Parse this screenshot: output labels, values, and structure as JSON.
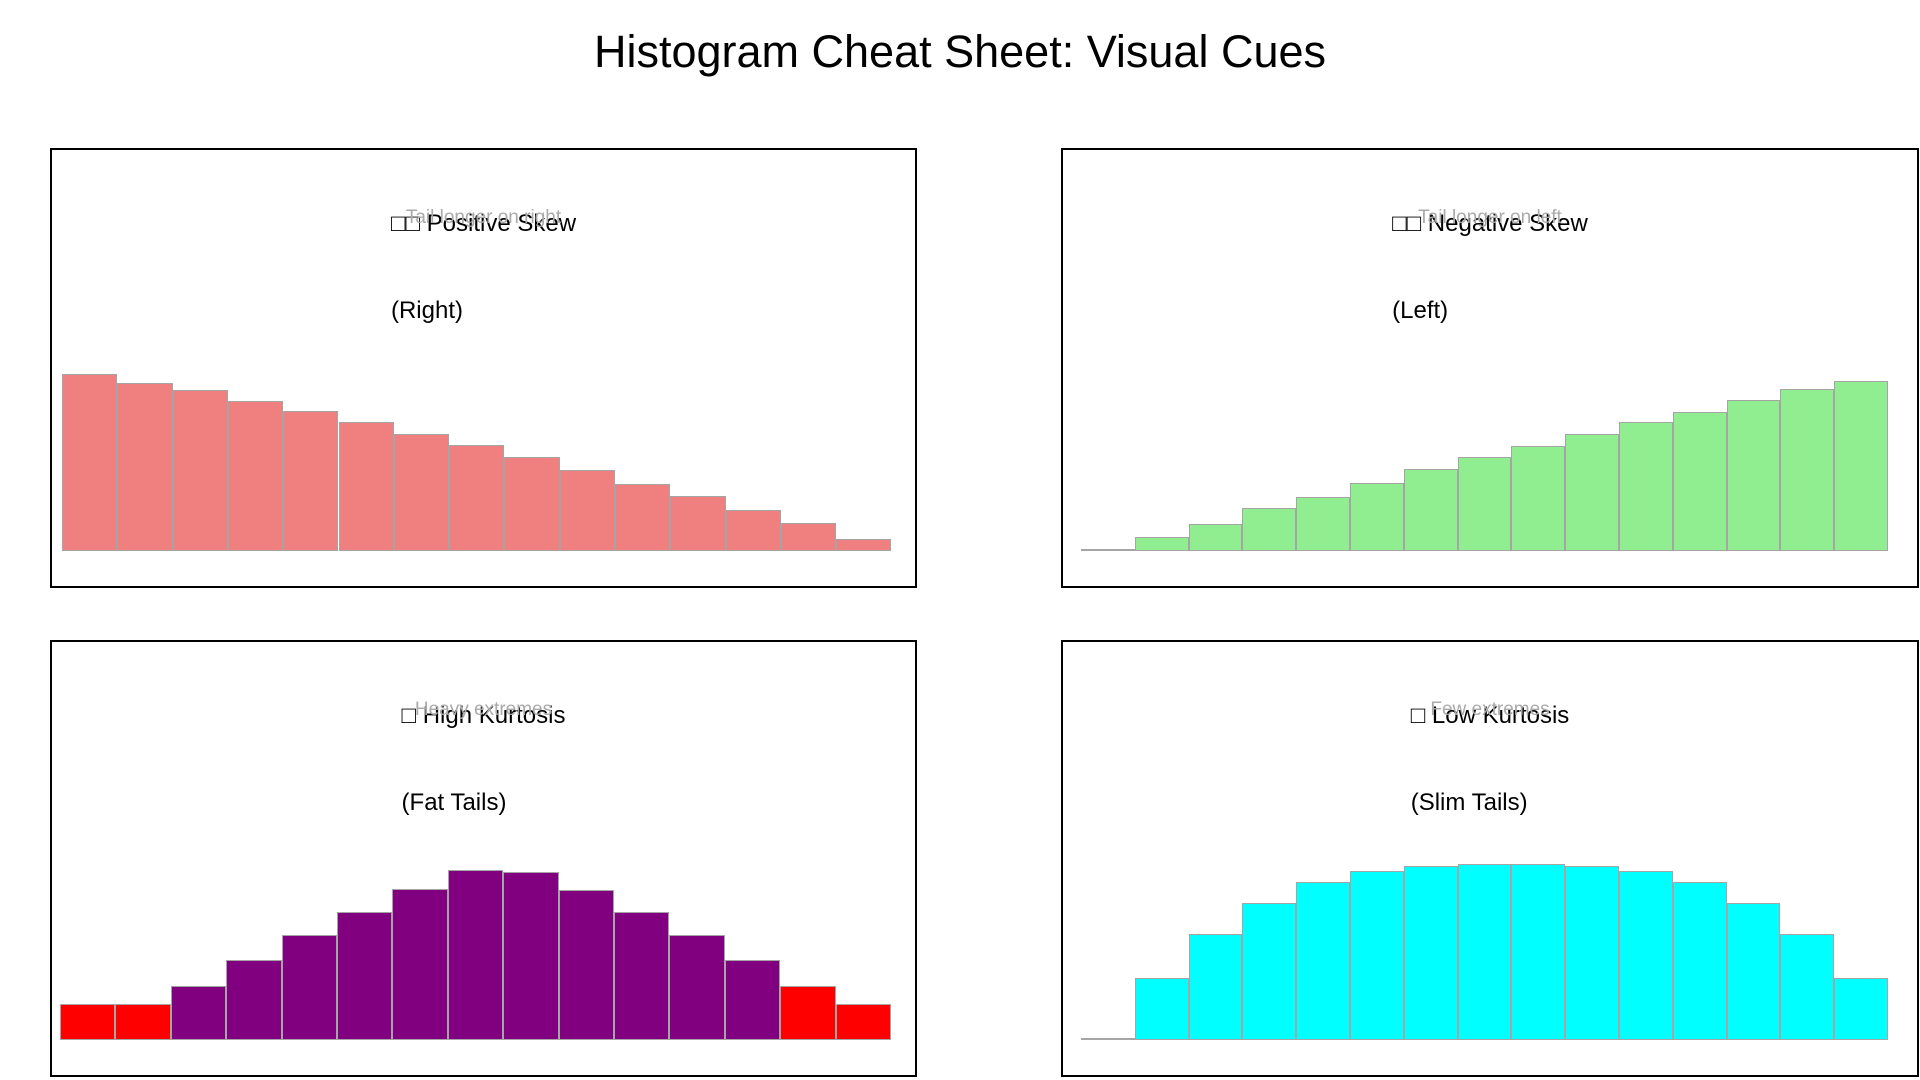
{
  "main_title": "Histogram Cheat Sheet: Visual Cues",
  "panels": [
    {
      "id": "positive-skew",
      "title_line1": "□□ Positive Skew",
      "title_line2": "(Right)",
      "subtitle": "Tail longer on right",
      "missing_glyph_count": 2
    },
    {
      "id": "negative-skew",
      "title_line1": "□□ Negative Skew",
      "title_line2": "(Left)",
      "subtitle": "Tail longer on left",
      "missing_glyph_count": 2
    },
    {
      "id": "high-kurtosis",
      "title_line1": "□ High Kurtosis",
      "title_line2": "(Fat Tails)",
      "subtitle": "Heavy extremes",
      "missing_glyph_count": 1
    },
    {
      "id": "low-kurtosis",
      "title_line1": "□ Low Kurtosis",
      "title_line2": "(Slim Tails)",
      "subtitle": "Few extremes",
      "missing_glyph_count": 1
    }
  ],
  "chart_data": [
    {
      "type": "bar",
      "subtype": "histogram",
      "title": "□□ Positive Skew (Right)",
      "annotation": "Tail longer on right",
      "bin_count": 15,
      "values": [
        1.0,
        0.95,
        0.91,
        0.85,
        0.79,
        0.73,
        0.66,
        0.6,
        0.53,
        0.46,
        0.38,
        0.31,
        0.23,
        0.16,
        0.07
      ],
      "value_note": "relative frequency, monotonically decreasing left to right; no axis ticks or labels shown",
      "bar_color": "#F08080",
      "bar_edge_color": "#a5a5a5",
      "grid": false,
      "legend": false
    },
    {
      "type": "bar",
      "subtype": "histogram",
      "title": "□□ Negative Skew (Left)",
      "annotation": "Tail longer on left",
      "bin_count": 15,
      "values": [
        0.01,
        0.08,
        0.16,
        0.25,
        0.32,
        0.4,
        0.48,
        0.55,
        0.62,
        0.69,
        0.76,
        0.82,
        0.89,
        0.95,
        1.0
      ],
      "value_note": "relative frequency, monotonically increasing left to right; no axis ticks or labels shown",
      "bar_color": "#90EE90",
      "bar_edge_color": "#a5a5a5",
      "grid": false,
      "legend": false
    },
    {
      "type": "bar",
      "subtype": "histogram",
      "title": "□ High Kurtosis (Fat Tails)",
      "annotation": "Heavy extremes",
      "bin_count": 15,
      "values": [
        0.21,
        0.21,
        0.32,
        0.47,
        0.62,
        0.75,
        0.89,
        1.0,
        0.99,
        0.88,
        0.75,
        0.62,
        0.47,
        0.32,
        0.21
      ],
      "value_note": "bell shape with heavy tails; outermost two bins on each side highlighted red",
      "bar_color": "#800080",
      "tail_color": "#FF0000",
      "tail_bins": [
        0,
        1,
        13,
        14
      ],
      "bar_edge_color": "#a5a5a5",
      "grid": false,
      "legend": false
    },
    {
      "type": "bar",
      "subtype": "histogram",
      "title": "□ Low Kurtosis (Slim Tails)",
      "annotation": "Few extremes",
      "bin_count": 15,
      "values": [
        0.01,
        0.35,
        0.6,
        0.78,
        0.9,
        0.96,
        0.99,
        1.0,
        1.0,
        0.99,
        0.96,
        0.9,
        0.78,
        0.6,
        0.35
      ],
      "value_note": "flat dome shape, thin tails; no axis ticks or labels shown",
      "bar_color": "#00FFFF",
      "bar_edge_color": "#a5a5a5",
      "grid": false,
      "legend": false
    }
  ],
  "colors": {
    "background": "#ffffff",
    "panel_border": "#000000",
    "title_text": "#000000",
    "subtitle_text": "#aaaaaa"
  }
}
